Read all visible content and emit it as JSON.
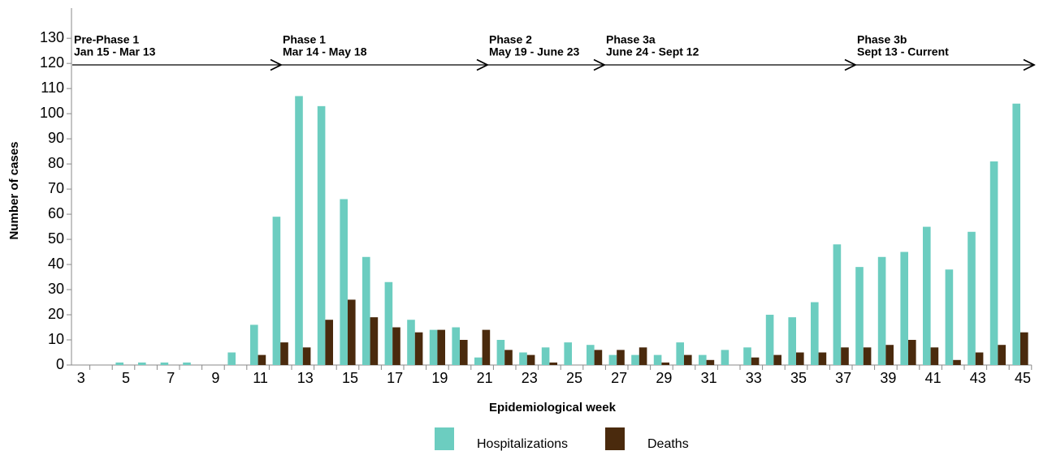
{
  "chart_data": {
    "type": "bar",
    "x_label": "Epidemiological week",
    "y_label": "Number of cases",
    "categories": [
      3,
      null,
      5,
      null,
      7,
      null,
      9,
      null,
      11,
      null,
      13,
      null,
      15,
      null,
      17,
      null,
      19,
      null,
      21,
      null,
      23,
      null,
      25,
      null,
      27,
      null,
      29,
      null,
      31,
      null,
      33,
      null,
      35,
      null,
      37,
      null,
      39,
      null,
      41,
      null,
      43,
      null,
      45
    ],
    "series": [
      {
        "name": "Hospitalizations",
        "color": "#6ccdc0",
        "values": [
          0,
          0,
          1,
          1,
          1,
          1,
          0,
          5,
          16,
          59,
          107,
          103,
          66,
          43,
          33,
          18,
          14,
          15,
          3,
          10,
          5,
          7,
          9,
          8,
          4,
          4,
          4,
          9,
          4,
          6,
          7,
          20,
          19,
          25,
          48,
          39,
          43,
          45,
          55,
          38,
          53,
          81,
          104
        ]
      },
      {
        "name": "Deaths",
        "color": "#4a2a0d",
        "values": [
          0,
          0,
          0,
          0,
          0,
          0,
          0,
          0,
          4,
          9,
          7,
          18,
          26,
          19,
          15,
          13,
          14,
          10,
          14,
          6,
          4,
          1,
          0,
          6,
          6,
          7,
          1,
          4,
          2,
          0,
          3,
          4,
          5,
          5,
          7,
          7,
          8,
          10,
          7,
          2,
          5,
          8,
          13
        ]
      }
    ],
    "ylim": [
      0,
      142
    ],
    "yticks": [
      0,
      10,
      20,
      30,
      40,
      50,
      60,
      70,
      80,
      90,
      100,
      110,
      120,
      130
    ],
    "phases": [
      {
        "name": "Pre-Phase 1",
        "dates": "Jan 15 - Mar 13"
      },
      {
        "name": "Phase 1",
        "dates": "Mar 14 - May 18"
      },
      {
        "name": "Phase 2",
        "dates": "May 19 - June 23"
      },
      {
        "name": "Phase 3a",
        "dates": "June 24 - Sept 12"
      },
      {
        "name": "Phase 3b",
        "dates": "Sept 13 - Current"
      }
    ]
  }
}
